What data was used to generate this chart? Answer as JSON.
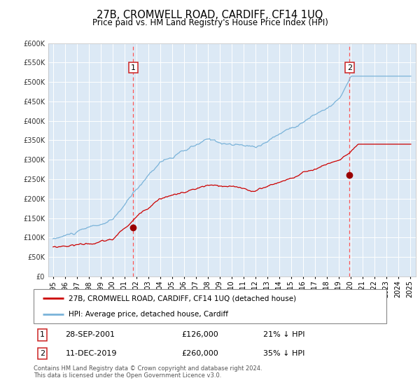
{
  "title": "27B, CROMWELL ROAD, CARDIFF, CF14 1UQ",
  "subtitle": "Price paid vs. HM Land Registry's House Price Index (HPI)",
  "background_color": "#ffffff",
  "plot_bg_color": "#dce9f5",
  "grid_color": "#ffffff",
  "hpi_color": "#7ab3d9",
  "price_color": "#cc0000",
  "marker_color": "#990000",
  "vline_color": "#ff5555",
  "ylim": [
    0,
    600000
  ],
  "yticks": [
    0,
    50000,
    100000,
    150000,
    200000,
    250000,
    300000,
    350000,
    400000,
    450000,
    500000,
    550000,
    600000
  ],
  "sale1_date": 2001.75,
  "sale1_price": 126000,
  "sale2_date": 2019.92,
  "sale2_price": 260000,
  "legend_label_price": "27B, CROMWELL ROAD, CARDIFF, CF14 1UQ (detached house)",
  "legend_label_hpi": "HPI: Average price, detached house, Cardiff",
  "footer": "Contains HM Land Registry data © Crown copyright and database right 2024.\nThis data is licensed under the Open Government Licence v3.0.",
  "start_year": 1995,
  "end_year": 2025
}
